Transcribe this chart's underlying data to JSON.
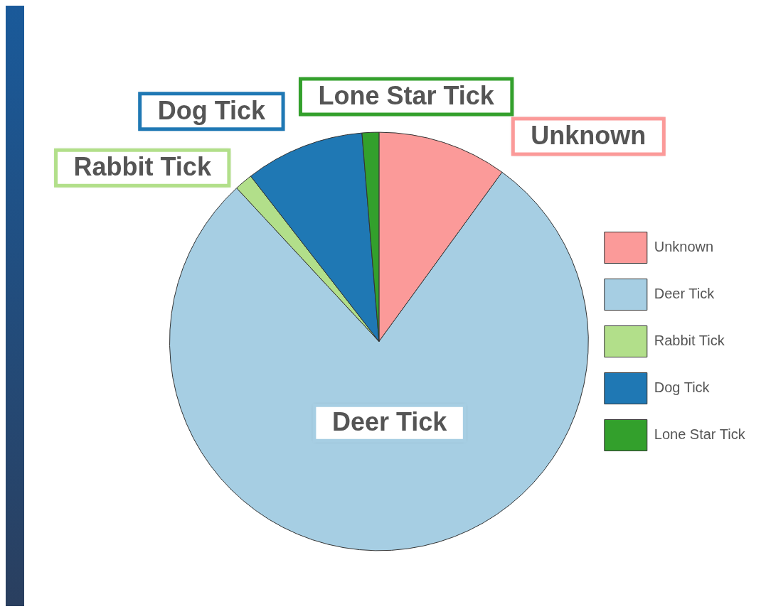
{
  "chart_data": {
    "type": "pie",
    "categories": [
      "Unknown",
      "Deer Tick",
      "Rabbit Tick",
      "Dog Tick",
      "Lone Star Tick"
    ],
    "values": [
      10,
      78.1,
      1.4,
      9.2,
      1.3
    ],
    "colors": [
      "#fb9a99",
      "#a6cee3",
      "#b2df8a",
      "#1f78b4",
      "#33a02c"
    ],
    "legend": "right"
  }
}
